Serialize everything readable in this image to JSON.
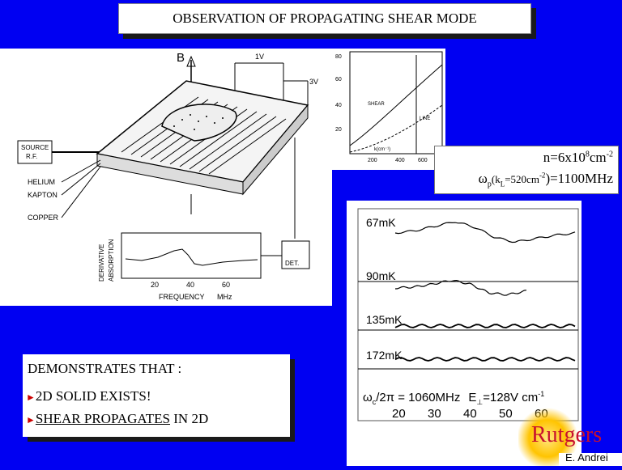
{
  "slide": {
    "title": "OBSERVATION OF PROPAGATING SHEAR MODE",
    "apparatus": {
      "field_label": "B",
      "voltage_top": "1V",
      "voltage_side": "3V",
      "source_label_1": "SOURCE",
      "source_label_2": "R.F.",
      "helium_label": "HELIUM",
      "kapton_label": "KAPTON",
      "copper_label": "COPPER",
      "ylabel_1": "DERIVATIVE",
      "ylabel_2": "ABSORPTION",
      "det_label": "DET.",
      "ticks": [
        "20",
        "40",
        "60"
      ],
      "xlabel": "FREQUENCY",
      "xunit": "MHz"
    },
    "dispersion": {
      "y_ticks": [
        "80",
        "60",
        "40",
        "20"
      ],
      "x_ticks": [
        "200",
        "400",
        "600"
      ],
      "shear_label": "SHEAR",
      "line_label": "LINE",
      "x_axis_label": "k(cm⁻¹)"
    },
    "density": {
      "line1_prefix": "n=6x10",
      "line1_exp": "8",
      "line1_unit": "cm",
      "line1_unit_exp": "-2",
      "line2_omega": "ω",
      "line2_sub": "p",
      "line2_paren_open": "(k",
      "line2_ksub": "L",
      "line2_mid": "=520cm",
      "line2_exp": "-2",
      "line2_end": ")=1100MHz"
    },
    "traces": {
      "labels": [
        "67mK",
        "90mK",
        "135mK",
        "172mK"
      ],
      "condition_omega": "ω",
      "condition_sub": "c",
      "condition_text": "/2π = 1060MHz",
      "condition_field": "E",
      "condition_field_sub": "⊥",
      "condition_field_val": "=128V cm",
      "condition_field_exp": "-1",
      "x_ticks": [
        "20",
        "30",
        "40",
        "50",
        "60"
      ]
    },
    "demonstrates": {
      "heading": "DEMONSTRATES THAT :",
      "bullet1": "2D SOLID EXISTS!",
      "bullet2_u": "SHEAR PROPAGATES",
      "bullet2_rest": " IN 2D"
    },
    "logo": {
      "name": "Rutgers",
      "author": "E. Andrei"
    }
  },
  "colors": {
    "background": "#0000f2",
    "bullet": "#cc0000",
    "logo_red": "#c8102e",
    "sun": "#ffc400"
  },
  "chart_data": {
    "type": "line",
    "x_range": [
      15,
      65
    ],
    "series": [
      {
        "name": "67mK",
        "values": [
          0,
          0.2,
          0.6,
          1.0,
          0.5,
          -0.4,
          -0.8,
          -0.5,
          -0.2,
          0
        ]
      },
      {
        "name": "90mK",
        "values": [
          0,
          0.1,
          0.4,
          0.8,
          0.4,
          -0.5,
          -0.7,
          -0.3
        ]
      },
      {
        "name": "135mK",
        "values": [
          0,
          0,
          0,
          0,
          0,
          0,
          0,
          0,
          0,
          0
        ]
      },
      {
        "name": "172mK",
        "values": [
          0,
          0,
          0,
          0,
          0,
          0,
          0,
          0,
          0,
          0
        ]
      }
    ]
  }
}
